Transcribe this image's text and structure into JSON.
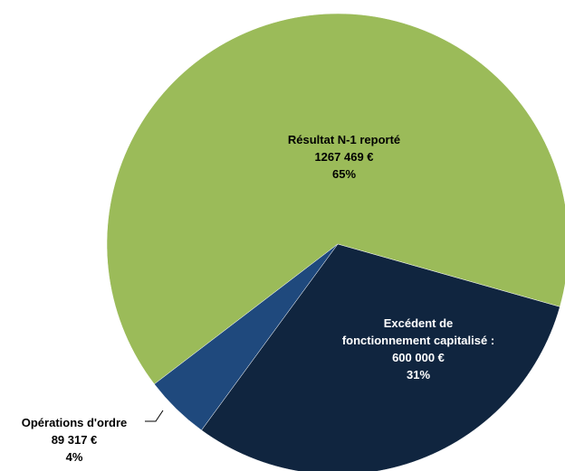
{
  "chart_data": {
    "type": "pie",
    "categories": [
      "Résultat N-1 reporté",
      "Excédent de\nfonctionnement capitalisé :",
      "Opérations d'ordre"
    ],
    "values": [
      1267469,
      600000,
      89317
    ],
    "value_labels": [
      "1267 469 €",
      "600 000 €",
      "89 317 €"
    ],
    "percents": [
      65,
      31,
      4
    ],
    "percent_labels": [
      "65%",
      "31%",
      "4%"
    ],
    "colors": [
      "#9bbb59",
      "#10253f",
      "#1f497d"
    ]
  }
}
